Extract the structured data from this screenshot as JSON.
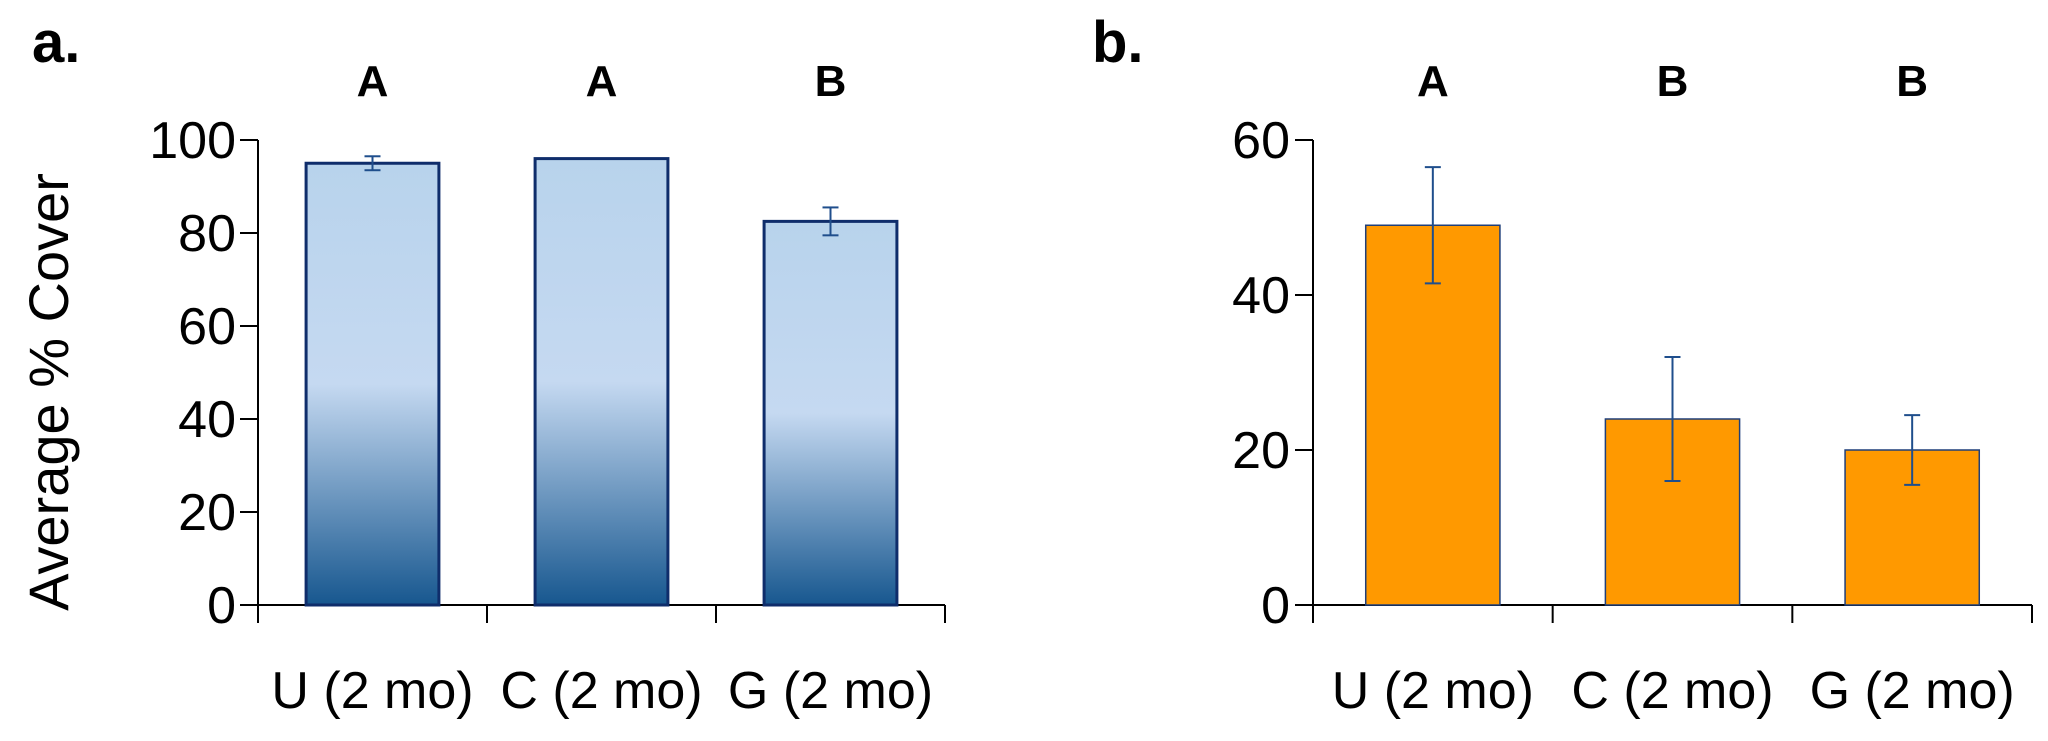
{
  "chart_data": [
    {
      "type": "bar",
      "panel_label": "a.",
      "ylabel": "Average % Cover",
      "xlabel": "",
      "categories": [
        "U (2 mo)",
        "C (2 mo)",
        "G (2 mo)"
      ],
      "values": [
        95,
        96,
        82.5
      ],
      "errors": [
        1.5,
        0,
        3
      ],
      "significance": [
        "A",
        "A",
        "B"
      ],
      "ylim": [
        0,
        100
      ],
      "yticks": [
        0,
        20,
        40,
        60,
        80,
        100
      ],
      "bar_color_top": "#b8d3ec",
      "bar_color_mid": "#c5d9f1",
      "bar_color_bottom": "#17578f",
      "bar_edge": "#0f2d6b",
      "error_color": "#1f4e8c"
    },
    {
      "type": "bar",
      "panel_label": "b.",
      "ylabel": "",
      "xlabel": "",
      "categories": [
        "U (2 mo)",
        "C (2 mo)",
        "G (2 mo)"
      ],
      "values": [
        49,
        24,
        20
      ],
      "errors": [
        7.5,
        8,
        4.5
      ],
      "significance": [
        "A",
        "B",
        "B"
      ],
      "ylim": [
        0,
        60
      ],
      "yticks": [
        0,
        20,
        40,
        60
      ],
      "bar_color": "#ff9900",
      "bar_edge": "#1f3f7a",
      "error_color": "#1f4e8c"
    }
  ]
}
